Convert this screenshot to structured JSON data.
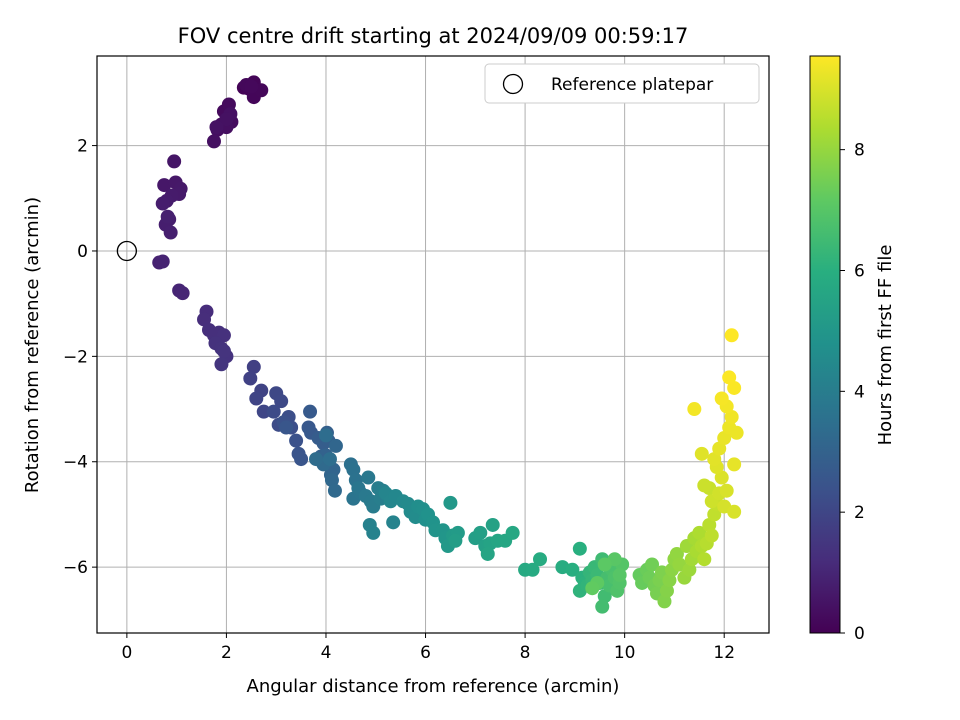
{
  "chart_data": {
    "type": "scatter",
    "title": "FOV centre drift starting at 2024/09/09 00:59:17",
    "xlabel": "Angular distance from reference (arcmin)",
    "ylabel": "Rotation from reference (arcmin)",
    "xlim": [
      -0.6,
      12.9
    ],
    "ylim": [
      -7.25,
      3.7
    ],
    "xticks": [
      0,
      2,
      4,
      6,
      8,
      10,
      12
    ],
    "yticks": [
      -6,
      -4,
      -2,
      0,
      2
    ],
    "grid": true,
    "legend": {
      "placement": "top-right",
      "entries": [
        "Reference platepar"
      ]
    },
    "reference_point": {
      "x": 0,
      "y": 0,
      "label": "Reference platepar"
    },
    "colorbar": {
      "label": "Hours from first FF file",
      "range": [
        0,
        9.55
      ],
      "ticks": [
        0,
        2,
        4,
        6,
        8
      ],
      "colormap": "viridis"
    },
    "points": [
      [
        2.35,
        3.1,
        0.05
      ],
      [
        2.45,
        3.08,
        0.08
      ],
      [
        2.55,
        3.2,
        0.1
      ],
      [
        2.62,
        3.05,
        0.12
      ],
      [
        2.55,
        2.92,
        0.14
      ],
      [
        2.7,
        3.05,
        0.16
      ],
      [
        2.4,
        3.15,
        0.18
      ],
      [
        2.5,
        3.12,
        0.2
      ],
      [
        1.95,
        2.65,
        0.25
      ],
      [
        2.05,
        2.78,
        0.28
      ],
      [
        2.1,
        2.45,
        0.3
      ],
      [
        1.9,
        2.4,
        0.33
      ],
      [
        1.82,
        2.3,
        0.36
      ],
      [
        2.0,
        2.35,
        0.38
      ],
      [
        1.75,
        2.08,
        0.4
      ],
      [
        2.08,
        2.6,
        0.42
      ],
      [
        2.0,
        2.5,
        0.44
      ],
      [
        1.8,
        2.35,
        0.46
      ],
      [
        0.95,
        1.7,
        0.55
      ],
      [
        0.75,
        1.25,
        0.6
      ],
      [
        0.98,
        1.3,
        0.62
      ],
      [
        1.08,
        1.18,
        0.65
      ],
      [
        1.05,
        1.08,
        0.68
      ],
      [
        0.9,
        1.05,
        0.7
      ],
      [
        0.8,
        0.95,
        0.72
      ],
      [
        0.72,
        0.9,
        0.75
      ],
      [
        0.85,
        0.6,
        0.78
      ],
      [
        0.78,
        0.5,
        0.8
      ],
      [
        0.88,
        0.35,
        0.82
      ],
      [
        0.82,
        0.65,
        0.84
      ],
      [
        0.65,
        -0.22,
        0.9
      ],
      [
        0.72,
        -0.2,
        0.92
      ],
      [
        1.05,
        -0.75,
        0.98
      ],
      [
        1.12,
        -0.8,
        1.0
      ],
      [
        1.6,
        -1.15,
        1.2
      ],
      [
        1.55,
        -1.3,
        1.22
      ],
      [
        1.65,
        -1.5,
        1.25
      ],
      [
        1.75,
        -1.6,
        1.28
      ],
      [
        1.85,
        -1.55,
        1.3
      ],
      [
        1.95,
        -1.6,
        1.32
      ],
      [
        1.78,
        -1.75,
        1.35
      ],
      [
        1.9,
        -1.85,
        1.38
      ],
      [
        2.0,
        -2.0,
        1.4
      ],
      [
        1.95,
        -1.9,
        1.42
      ],
      [
        1.9,
        -2.15,
        1.45
      ],
      [
        2.55,
        -2.2,
        1.8
      ],
      [
        2.48,
        -2.42,
        1.85
      ],
      [
        2.7,
        -2.65,
        1.9
      ],
      [
        2.6,
        -2.8,
        1.95
      ],
      [
        2.75,
        -3.05,
        2.0
      ],
      [
        3.0,
        -2.7,
        2.05
      ],
      [
        3.1,
        -2.85,
        2.1
      ],
      [
        2.95,
        -3.05,
        2.15
      ],
      [
        3.05,
        -3.3,
        2.2
      ],
      [
        3.25,
        -3.15,
        2.25
      ],
      [
        3.3,
        -3.35,
        2.3
      ],
      [
        3.15,
        -3.25,
        2.35
      ],
      [
        3.4,
        -3.6,
        2.4
      ],
      [
        3.45,
        -3.85,
        2.45
      ],
      [
        3.5,
        -3.95,
        2.5
      ],
      [
        3.2,
        -3.35,
        2.55
      ],
      [
        3.65,
        -3.35,
        2.6
      ],
      [
        3.7,
        -3.45,
        2.65
      ],
      [
        3.68,
        -3.05,
        2.7
      ],
      [
        3.85,
        -3.55,
        2.75
      ],
      [
        3.95,
        -3.65,
        2.8
      ],
      [
        4.05,
        -3.6,
        2.85
      ],
      [
        4.02,
        -3.45,
        2.9
      ],
      [
        3.9,
        -3.9,
        2.95
      ],
      [
        4.0,
        -3.88,
        3.0
      ],
      [
        4.05,
        -4.0,
        3.05
      ],
      [
        4.15,
        -4.15,
        3.08
      ],
      [
        4.1,
        -4.25,
        3.1
      ],
      [
        4.2,
        -3.7,
        3.15
      ],
      [
        4.12,
        -4.35,
        3.2
      ],
      [
        4.18,
        -4.55,
        3.25
      ],
      [
        3.95,
        -4.05,
        3.3
      ],
      [
        3.8,
        -3.95,
        3.35
      ],
      [
        4.0,
        -3.5,
        3.4
      ],
      [
        4.08,
        -3.95,
        3.45
      ],
      [
        4.5,
        -4.05,
        3.5
      ],
      [
        4.55,
        -4.15,
        3.55
      ],
      [
        4.6,
        -4.35,
        3.6
      ],
      [
        4.55,
        -4.7,
        3.65
      ],
      [
        4.7,
        -4.6,
        3.7
      ],
      [
        4.65,
        -4.5,
        3.75
      ],
      [
        4.85,
        -4.3,
        3.8
      ],
      [
        4.8,
        -4.65,
        3.85
      ],
      [
        4.9,
        -4.75,
        3.9
      ],
      [
        4.95,
        -4.85,
        3.95
      ],
      [
        5.05,
        -4.5,
        4.0
      ],
      [
        5.1,
        -4.7,
        4.05
      ],
      [
        5.15,
        -4.55,
        4.1
      ],
      [
        4.88,
        -5.2,
        4.15
      ],
      [
        4.95,
        -5.35,
        4.2
      ],
      [
        5.35,
        -5.15,
        4.25
      ],
      [
        5.2,
        -4.6,
        4.3
      ],
      [
        5.3,
        -4.75,
        4.35
      ],
      [
        5.4,
        -4.65,
        4.4
      ],
      [
        5.55,
        -4.75,
        4.45
      ],
      [
        5.65,
        -4.8,
        4.5
      ],
      [
        5.7,
        -4.95,
        4.55
      ],
      [
        5.8,
        -5.05,
        4.6
      ],
      [
        5.85,
        -4.85,
        4.65
      ],
      [
        5.95,
        -4.9,
        4.7
      ],
      [
        6.0,
        -5.1,
        4.75
      ],
      [
        6.05,
        -5.0,
        4.8
      ],
      [
        6.15,
        -5.15,
        4.85
      ],
      [
        6.2,
        -5.3,
        4.9
      ],
      [
        6.35,
        -5.3,
        4.95
      ],
      [
        6.4,
        -5.45,
        5.0
      ],
      [
        6.5,
        -4.78,
        5.05
      ],
      [
        6.45,
        -5.6,
        5.1
      ],
      [
        6.55,
        -5.4,
        5.15
      ],
      [
        6.65,
        -5.35,
        5.2
      ],
      [
        6.6,
        -5.5,
        5.25
      ],
      [
        7.0,
        -5.45,
        5.3
      ],
      [
        7.1,
        -5.35,
        5.35
      ],
      [
        7.2,
        -5.6,
        5.4
      ],
      [
        7.35,
        -5.2,
        5.45
      ],
      [
        7.3,
        -5.55,
        5.5
      ],
      [
        7.25,
        -5.75,
        5.55
      ],
      [
        7.45,
        -5.5,
        5.6
      ],
      [
        7.6,
        -5.5,
        5.65
      ],
      [
        7.75,
        -5.35,
        5.7
      ],
      [
        8.0,
        -6.05,
        5.75
      ],
      [
        8.15,
        -6.05,
        5.8
      ],
      [
        8.3,
        -5.85,
        5.85
      ],
      [
        8.75,
        -6.0,
        5.9
      ],
      [
        8.95,
        -6.05,
        5.95
      ],
      [
        9.1,
        -5.65,
        6.0
      ],
      [
        9.15,
        -6.2,
        6.05
      ],
      [
        9.2,
        -6.3,
        6.1
      ],
      [
        9.1,
        -6.45,
        6.15
      ],
      [
        9.25,
        -6.35,
        6.2
      ],
      [
        9.3,
        -6.1,
        6.25
      ],
      [
        9.35,
        -6.25,
        6.3
      ],
      [
        9.4,
        -6.0,
        6.35
      ],
      [
        9.45,
        -6.15,
        6.4
      ],
      [
        9.5,
        -6.3,
        6.45
      ],
      [
        9.55,
        -5.85,
        6.5
      ],
      [
        9.6,
        -6.55,
        6.55
      ],
      [
        9.55,
        -6.75,
        6.6
      ],
      [
        9.65,
        -6.2,
        6.65
      ],
      [
        9.7,
        -6.35,
        6.7
      ],
      [
        9.75,
        -6.05,
        6.75
      ],
      [
        9.8,
        -6.2,
        6.8
      ],
      [
        9.85,
        -6.45,
        6.85
      ],
      [
        9.9,
        -6.3,
        6.9
      ],
      [
        9.95,
        -5.95,
        6.95
      ],
      [
        9.9,
        -6.15,
        7.0
      ],
      [
        9.8,
        -5.85,
        7.05
      ],
      [
        9.6,
        -5.95,
        7.1
      ],
      [
        9.45,
        -6.3,
        7.15
      ],
      [
        9.35,
        -6.4,
        7.2
      ],
      [
        10.3,
        -6.15,
        7.25
      ],
      [
        10.35,
        -6.3,
        7.3
      ],
      [
        10.45,
        -6.05,
        7.35
      ],
      [
        10.5,
        -6.2,
        7.4
      ],
      [
        10.55,
        -5.95,
        7.45
      ],
      [
        10.6,
        -6.35,
        7.5
      ],
      [
        10.65,
        -6.5,
        7.55
      ],
      [
        10.7,
        -6.25,
        7.6
      ],
      [
        10.75,
        -6.1,
        7.65
      ],
      [
        10.8,
        -6.65,
        7.7
      ],
      [
        10.85,
        -6.45,
        7.75
      ],
      [
        10.9,
        -6.25,
        7.8
      ],
      [
        10.95,
        -6.05,
        7.85
      ],
      [
        11.0,
        -5.85,
        7.9
      ],
      [
        11.05,
        -5.75,
        7.95
      ],
      [
        11.1,
        -5.95,
        8.0
      ],
      [
        11.2,
        -6.2,
        8.05
      ],
      [
        11.3,
        -6.05,
        8.1
      ],
      [
        11.25,
        -5.6,
        8.15
      ],
      [
        11.35,
        -5.85,
        8.2
      ],
      [
        11.4,
        -5.45,
        8.25
      ],
      [
        11.45,
        -5.7,
        8.3
      ],
      [
        11.5,
        -5.35,
        8.35
      ],
      [
        11.55,
        -5.6,
        8.4
      ],
      [
        11.6,
        -5.85,
        8.45
      ],
      [
        11.65,
        -5.55,
        8.5
      ],
      [
        11.7,
        -5.2,
        8.55
      ],
      [
        11.75,
        -5.4,
        8.6
      ],
      [
        11.8,
        -5.0,
        8.65
      ],
      [
        11.85,
        -4.8,
        8.7
      ],
      [
        11.7,
        -4.5,
        8.75
      ],
      [
        11.6,
        -4.45,
        8.8
      ],
      [
        11.75,
        -4.75,
        8.85
      ],
      [
        11.9,
        -4.6,
        8.9
      ],
      [
        12.0,
        -4.85,
        8.95
      ],
      [
        12.05,
        -4.55,
        9.0
      ],
      [
        11.95,
        -4.3,
        9.05
      ],
      [
        11.85,
        -4.1,
        9.1
      ],
      [
        11.8,
        -3.95,
        9.15
      ],
      [
        11.9,
        -3.75,
        9.2
      ],
      [
        12.0,
        -3.55,
        9.25
      ],
      [
        12.1,
        -3.35,
        9.3
      ],
      [
        12.15,
        -3.15,
        9.35
      ],
      [
        12.05,
        -2.95,
        9.4
      ],
      [
        11.95,
        -2.8,
        9.45
      ],
      [
        12.2,
        -2.6,
        9.5
      ],
      [
        12.1,
        -2.4,
        9.52
      ],
      [
        12.15,
        -1.6,
        9.55
      ],
      [
        11.4,
        -3.0,
        9.4
      ],
      [
        11.55,
        -3.85,
        9.1
      ],
      [
        12.2,
        -4.95,
        9.0
      ],
      [
        12.2,
        -4.05,
        9.2
      ],
      [
        12.25,
        -3.45,
        9.3
      ]
    ]
  }
}
